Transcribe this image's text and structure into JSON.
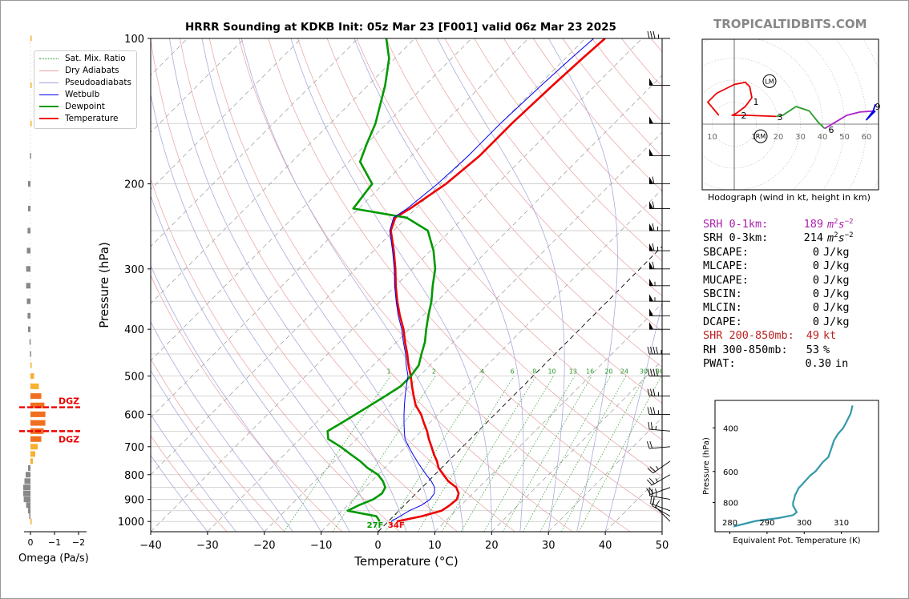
{
  "brand": "TROPICALTIDBITS.COM",
  "chart_data": [
    {
      "type": "line",
      "title": "HRRR Sounding at KDKB Init: 05z Mar 23 [F001] valid 06z Mar 23 2025",
      "xlabel": "Temperature (°C)",
      "ylabel": "Pressure (hPa)",
      "xlim": [
        -40,
        50
      ],
      "ylim": [
        1050,
        100
      ],
      "y_scale": "log",
      "x_ticks": [
        "−40",
        "−30",
        "−20",
        "−10",
        "0",
        "10",
        "20",
        "30",
        "40",
        "50"
      ],
      "y_ticks": [
        "100",
        "200",
        "300",
        "400",
        "500",
        "600",
        "700",
        "800",
        "900",
        "1000"
      ],
      "legend": [
        "Sat. Mix. Ratio",
        "Dry Adiabats",
        "Pseudoadiabats",
        "Wetbulb",
        "Dewpoint",
        "Temperature"
      ],
      "legend_position": "top-left",
      "mixing_ratio_labels": [
        "1",
        "2",
        "4",
        "6",
        "8",
        "10",
        "13",
        "16",
        "20",
        "24",
        "30",
        "36"
      ],
      "surface_labels": {
        "dewpoint": "27F",
        "temperature": "34F"
      },
      "series": [
        {
          "name": "Temperature",
          "color": "#ee0000",
          "p": [
            1000,
            975,
            950,
            925,
            900,
            875,
            850,
            825,
            800,
            775,
            750,
            725,
            700,
            675,
            650,
            625,
            600,
            575,
            550,
            525,
            500,
            475,
            450,
            425,
            400,
            375,
            350,
            325,
            300,
            275,
            250,
            235,
            225,
            200,
            175,
            165,
            150,
            125,
            110,
            100
          ],
          "v": [
            1.5,
            5,
            7.5,
            8,
            8.2,
            7.5,
            6,
            3.5,
            1.5,
            -0.5,
            -2,
            -3.8,
            -5.5,
            -7.3,
            -9,
            -11,
            -13,
            -15.5,
            -17.5,
            -19.5,
            -21.5,
            -23.8,
            -26,
            -28.5,
            -31,
            -34,
            -37,
            -40,
            -43,
            -46.5,
            -50.5,
            -52,
            -51,
            -49,
            -48,
            -48,
            -48,
            -47.5,
            -47,
            -46.5
          ]
        },
        {
          "name": "Dewpoint",
          "color": "#009900",
          "p": [
            1000,
            975,
            950,
            925,
            900,
            875,
            850,
            825,
            800,
            775,
            750,
            725,
            700,
            675,
            650,
            625,
            600,
            575,
            550,
            525,
            500,
            475,
            450,
            425,
            400,
            375,
            350,
            325,
            300,
            275,
            250,
            235,
            225,
            200,
            180,
            165,
            150,
            125,
            110,
            100
          ],
          "v": [
            -1.5,
            -3,
            -9,
            -8,
            -6.5,
            -6,
            -6.5,
            -8,
            -10,
            -13,
            -15.5,
            -18.5,
            -21.5,
            -25,
            -26.5,
            -25.5,
            -24.5,
            -23.5,
            -22.5,
            -21.5,
            -21.5,
            -22,
            -23.5,
            -25,
            -27,
            -29,
            -31,
            -33.5,
            -36,
            -39.5,
            -44,
            -50,
            -61,
            -62,
            -68,
            -70,
            -72,
            -77,
            -81,
            -85
          ]
        },
        {
          "name": "Wetbulb",
          "color": "#0000ee",
          "p": [
            1000,
            975,
            950,
            925,
            900,
            875,
            850,
            825,
            800,
            775,
            750,
            725,
            700,
            675,
            650,
            625,
            600,
            575,
            550,
            525,
            500,
            475,
            450,
            425,
            400,
            375,
            350,
            325,
            300,
            275,
            250,
            235,
            225,
            200,
            175,
            165,
            150,
            125,
            110,
            100
          ],
          "v": [
            0.5,
            1.2,
            1.8,
            3,
            3.5,
            3.2,
            2.2,
            0.5,
            -1.5,
            -3.5,
            -5.5,
            -7.5,
            -9.5,
            -11.5,
            -13,
            -14.5,
            -16,
            -17.5,
            -19,
            -20.5,
            -22,
            -24.2,
            -26.3,
            -28.8,
            -31.3,
            -34.3,
            -37.2,
            -40.2,
            -43.2,
            -46.7,
            -50.7,
            -52.3,
            -51.5,
            -50.5,
            -50,
            -50,
            -50,
            -49.5,
            -49,
            -48.5
          ]
        }
      ],
      "wind_barbs_kt": [
        {
          "p": 1000,
          "speed": 10,
          "dir": 315
        },
        {
          "p": 975,
          "speed": 15,
          "dir": 300
        },
        {
          "p": 950,
          "speed": 20,
          "dir": 290
        },
        {
          "p": 900,
          "speed": 25,
          "dir": 280
        },
        {
          "p": 850,
          "speed": 25,
          "dir": 250
        },
        {
          "p": 800,
          "speed": 25,
          "dir": 240
        },
        {
          "p": 750,
          "speed": 25,
          "dir": 235
        },
        {
          "p": 700,
          "speed": 20,
          "dir": 265
        },
        {
          "p": 650,
          "speed": 25,
          "dir": 275
        },
        {
          "p": 600,
          "speed": 35,
          "dir": 270
        },
        {
          "p": 550,
          "speed": 35,
          "dir": 270
        },
        {
          "p": 500,
          "speed": 40,
          "dir": 270
        },
        {
          "p": 450,
          "speed": 45,
          "dir": 270
        },
        {
          "p": 400,
          "speed": 50,
          "dir": 270
        },
        {
          "p": 375,
          "speed": 50,
          "dir": 270
        },
        {
          "p": 350,
          "speed": 55,
          "dir": 270
        },
        {
          "p": 325,
          "speed": 55,
          "dir": 270
        },
        {
          "p": 300,
          "speed": 60,
          "dir": 270
        },
        {
          "p": 275,
          "speed": 65,
          "dir": 270
        },
        {
          "p": 250,
          "speed": 65,
          "dir": 270
        },
        {
          "p": 225,
          "speed": 60,
          "dir": 270
        },
        {
          "p": 200,
          "speed": 60,
          "dir": 270
        },
        {
          "p": 175,
          "speed": 50,
          "dir": 270
        },
        {
          "p": 150,
          "speed": 50,
          "dir": 270
        },
        {
          "p": 125,
          "speed": 50,
          "dir": 270
        },
        {
          "p": 100,
          "speed": 35,
          "dir": 270
        }
      ]
    },
    {
      "type": "bar",
      "xlabel": "Omega (Pa/s)",
      "xlim": [
        0.5,
        -2
      ],
      "x_ticks": [
        "0",
        "−1",
        "−2"
      ],
      "dgz_labels": [
        "DGZ",
        "DGZ"
      ],
      "dgz_p": [
        580,
        650
      ],
      "p": [
        1000,
        975,
        950,
        925,
        900,
        875,
        850,
        825,
        800,
        775,
        750,
        725,
        700,
        675,
        650,
        625,
        600,
        575,
        550,
        525,
        500,
        475,
        450,
        425,
        400,
        375,
        350,
        325,
        300,
        275,
        250,
        225,
        200,
        175,
        150,
        125,
        100
      ],
      "values": [
        -0.02,
        0.05,
        0.1,
        0.18,
        0.28,
        0.3,
        0.3,
        0.25,
        0.2,
        0.1,
        -0.1,
        -0.2,
        -0.3,
        -0.45,
        -0.55,
        -0.62,
        -0.62,
        -0.58,
        -0.45,
        -0.35,
        -0.15,
        -0.02,
        0.02,
        0.04,
        0.1,
        0.12,
        0.15,
        0.18,
        0.18,
        0.15,
        0.12,
        0.1,
        0.1,
        0.02,
        -0.05,
        -0.05,
        -0.02
      ]
    },
    {
      "type": "line",
      "title": "Hodograph (wind in kt, height in km)",
      "x_ticks": [
        "10",
        "10",
        "20",
        "30",
        "40",
        "50",
        "60"
      ],
      "ring_labels": [
        "LM",
        "RM"
      ],
      "height_labels": [
        "1",
        "2",
        "3",
        "6",
        "9"
      ],
      "segments": [
        {
          "color": "#ee0000",
          "u": [
            -7,
            -12,
            -8,
            0,
            5,
            7,
            8,
            5,
            1,
            -1,
            6,
            19
          ],
          "v": [
            4,
            10,
            14,
            18,
            19,
            17,
            12,
            8,
            5,
            4,
            4,
            3.5
          ]
        },
        {
          "color": "#2a9a2a",
          "u": [
            19,
            22,
            25,
            28,
            34,
            38,
            41
          ],
          "v": [
            3.5,
            4,
            6,
            8,
            6,
            1,
            -2
          ]
        },
        {
          "color": "#aa22cc",
          "u": [
            41,
            46,
            51,
            57,
            64
          ],
          "v": [
            -2,
            1,
            4,
            5.5,
            6
          ]
        },
        {
          "color": "#0000ee",
          "u": [
            64,
            62,
            60,
            63,
            64
          ],
          "v": [
            6,
            4,
            2,
            6,
            9
          ]
        }
      ],
      "storm_motion": {
        "LM": [
          16,
          19.5
        ],
        "RM": [
          12,
          -5.5
        ]
      }
    },
    {
      "type": "line",
      "xlabel": "Equivalent Pot. Temperature (K)",
      "ylabel": "Pressure (hPa)",
      "x_ticks": [
        "280",
        "290",
        "300",
        "310"
      ],
      "y_ticks": [
        "400",
        "600",
        "800"
      ],
      "xlim": [
        276,
        320
      ],
      "ylim": [
        1050,
        310
      ],
      "p": [
        1000,
        975,
        950,
        925,
        900,
        875,
        850,
        825,
        800,
        775,
        750,
        725,
        700,
        675,
        650,
        625,
        600,
        575,
        550,
        525,
        500,
        475,
        450,
        425,
        400,
        375,
        350,
        325
      ],
      "v": [
        281,
        284,
        287,
        293,
        297,
        298,
        297.5,
        297,
        297,
        297.3,
        297.5,
        298,
        298.5,
        299.5,
        300.5,
        301.5,
        303,
        304,
        305,
        306.5,
        307,
        307.5,
        308,
        309,
        310.5,
        311.5,
        312.5,
        313
      ]
    }
  ],
  "indices": [
    {
      "label": "SRH 0-1km:",
      "value": "189",
      "unit": "m2s-2",
      "color": "#aa22aa"
    },
    {
      "label": "SRH 0-3km:",
      "value": "214",
      "unit": "m2s-2",
      "color": "#000000"
    },
    {
      "label": "SBCAPE:",
      "value": "0",
      "unit": "J/kg",
      "color": "#000000"
    },
    {
      "label": "MLCAPE:",
      "value": "0",
      "unit": "J/kg",
      "color": "#000000"
    },
    {
      "label": "MUCAPE:",
      "value": "0",
      "unit": "J/kg",
      "color": "#000000"
    },
    {
      "label": "SBCIN:",
      "value": "0",
      "unit": "J/kg",
      "color": "#000000"
    },
    {
      "label": "MLCIN:",
      "value": "0",
      "unit": "J/kg",
      "color": "#000000"
    },
    {
      "label": "DCAPE:",
      "value": "0",
      "unit": "J/kg",
      "color": "#000000"
    },
    {
      "label": "SHR 200-850mb:",
      "value": "49",
      "unit": "kt",
      "color": "#bb2222"
    },
    {
      "label": "RH 300-850mb:",
      "value": "53",
      "unit": "%",
      "color": "#000000"
    },
    {
      "label": "PWAT:",
      "value": "0.30",
      "unit": "in",
      "color": "#000000"
    }
  ]
}
